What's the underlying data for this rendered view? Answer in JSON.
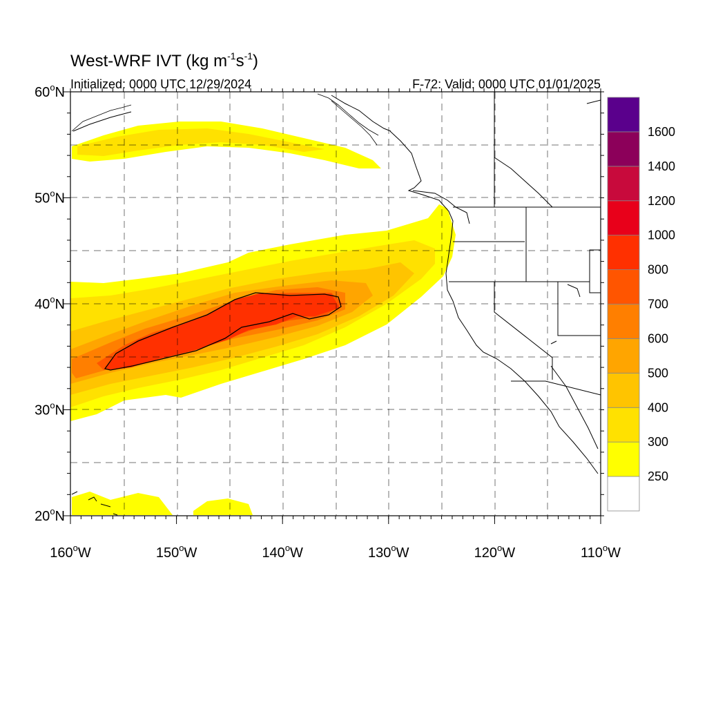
{
  "title": {
    "prefix": "West-WRF IVT (kg m",
    "exp1": "-1",
    "mid": "s",
    "exp2": "-1",
    "suffix": ")"
  },
  "subtitle_left": "Initialized: 0000 UTC 12/29/2024",
  "subtitle_right": "F-72: Valid: 0000 UTC 01/01/2025",
  "lat_ticks": [
    {
      "value": 60,
      "label": "60",
      "suffix": "N"
    },
    {
      "value": 50,
      "label": "50",
      "suffix": "N"
    },
    {
      "value": 40,
      "label": "40",
      "suffix": "N"
    },
    {
      "value": 30,
      "label": "30",
      "suffix": "N"
    },
    {
      "value": 20,
      "label": "20",
      "suffix": "N"
    }
  ],
  "lon_ticks": [
    {
      "value": -160,
      "label": "160",
      "suffix": "W"
    },
    {
      "value": -150,
      "label": "150",
      "suffix": "W"
    },
    {
      "value": -140,
      "label": "140",
      "suffix": "W"
    },
    {
      "value": -130,
      "label": "130",
      "suffix": "W"
    },
    {
      "value": -120,
      "label": "120",
      "suffix": "W"
    },
    {
      "value": -110,
      "label": "110",
      "suffix": "W"
    }
  ],
  "degree_symbol": "o",
  "map_extent": {
    "lon": [
      -160,
      -110
    ],
    "lat": [
      20,
      60
    ]
  },
  "colorbar": {
    "levels": [
      {
        "color": "#ffffff",
        "label": "250"
      },
      {
        "color": "#ffff00",
        "label": "300"
      },
      {
        "color": "#ffe100",
        "label": "400"
      },
      {
        "color": "#ffc400",
        "label": "500"
      },
      {
        "color": "#ffa500",
        "label": "600"
      },
      {
        "color": "#ff7f00",
        "label": "700"
      },
      {
        "color": "#ff5500",
        "label": "800"
      },
      {
        "color": "#ff3000",
        "label": "1000"
      },
      {
        "color": "#e8001a",
        "label": "1200"
      },
      {
        "color": "#c80a3c",
        "label": "1400"
      },
      {
        "color": "#8c005a",
        "label": "1600"
      },
      {
        "color": "#5a008c",
        "label": ""
      }
    ]
  }
}
